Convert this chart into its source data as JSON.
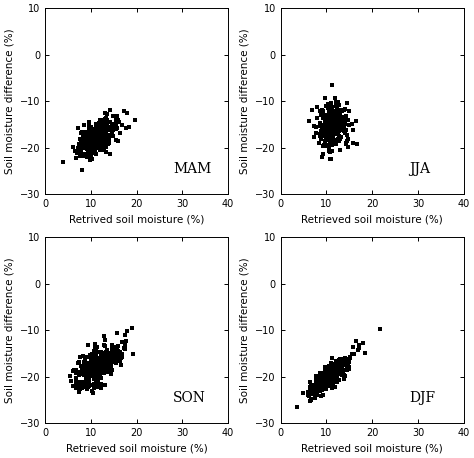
{
  "panels": [
    {
      "label": "MAM",
      "xlabel": "Retrived soil moisture (%)",
      "seed": 42,
      "n_points": 350,
      "x_center": 10.5,
      "x_spread": 2.2,
      "y_center": -18.5,
      "y_spread": 2.5,
      "trend": 0.55,
      "noise_scale": 1.8
    },
    {
      "label": "JJA",
      "xlabel": "Retrieved soil moisture (%)",
      "seed": 123,
      "n_points": 280,
      "x_center": 10.5,
      "x_spread": 1.5,
      "y_center": -15.5,
      "y_spread": 2.8,
      "trend": 0.25,
      "noise_scale": 2.5
    },
    {
      "label": "SON",
      "xlabel": "Retrieved soil moisture (%)",
      "seed": 77,
      "n_points": 380,
      "x_center": 11.0,
      "x_spread": 2.5,
      "y_center": -18.0,
      "y_spread": 2.8,
      "trend": 0.55,
      "noise_scale": 2.0
    },
    {
      "label": "DJF",
      "xlabel": "Retrieved soil moisture (%)",
      "seed": 55,
      "n_points": 350,
      "x_center": 10.0,
      "x_spread": 2.2,
      "y_center": -20.5,
      "y_spread": 1.5,
      "trend": 0.85,
      "noise_scale": 1.2
    }
  ],
  "ylabel": "Soil moisture difference (%)",
  "xlim": [
    0,
    40
  ],
  "ylim": [
    -30,
    10
  ],
  "xticks": [
    0,
    10,
    20,
    30,
    40
  ],
  "yticks": [
    -30,
    -20,
    -10,
    0,
    10
  ],
  "marker_size": 8,
  "marker_color": "black",
  "background_color": "white",
  "label_fontsize": 7.5,
  "tick_fontsize": 7,
  "panel_label_fontsize": 10
}
